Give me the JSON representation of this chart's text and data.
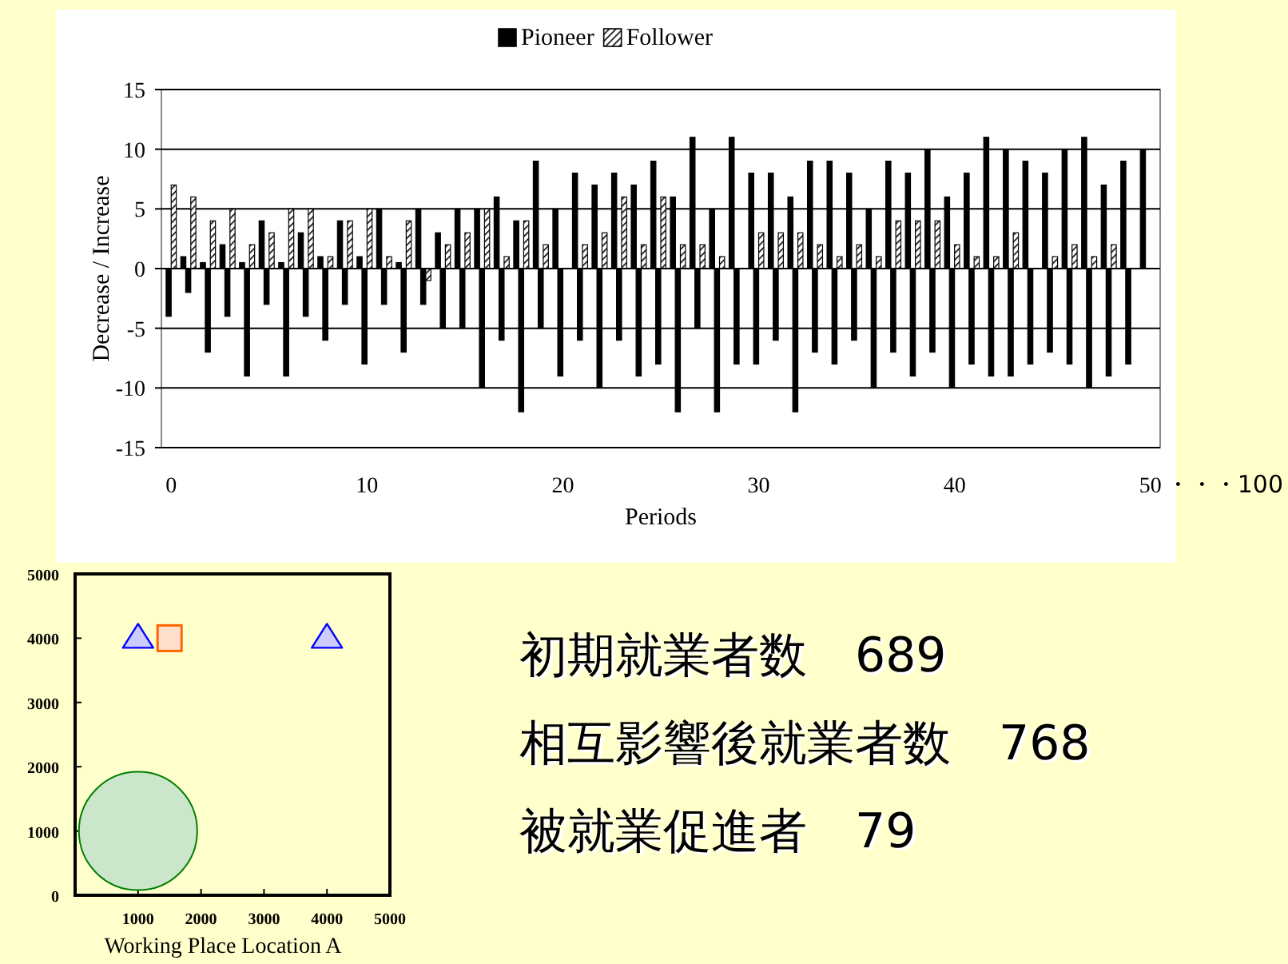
{
  "chart_data": [
    {
      "type": "bar",
      "xlabel": "Periods",
      "ylabel": "Decrease / Increase",
      "legend": "top",
      "grid": "y",
      "xlim": [
        -0.5,
        50.5
      ],
      "xticks": [
        0,
        10,
        20,
        30,
        40,
        50
      ],
      "ylim": [
        -15,
        15
      ],
      "yticks": [
        -15,
        -10,
        -5,
        0,
        5,
        10,
        15
      ],
      "annotations": [
        "・・・100"
      ],
      "series": [
        {
          "name": "Pioneer",
          "color": "#000000",
          "x": [
            0,
            0.75,
            1,
            1.75,
            2,
            2.75,
            3,
            3.75,
            4,
            4.75,
            5,
            5.75,
            6,
            6.75,
            7,
            7.75,
            8,
            8.75,
            9,
            9.75,
            10,
            10.75,
            11,
            11.75,
            12,
            12.75,
            13,
            13.75,
            14,
            14.75,
            15,
            15.75,
            16,
            16.75,
            17,
            17.75,
            18,
            18.75,
            19,
            19.75,
            20,
            20.75,
            21,
            21.75,
            22,
            22.75,
            23,
            23.75,
            24,
            24.75,
            25,
            25.75,
            26,
            26.75,
            27,
            27.75,
            28,
            28.75,
            29,
            29.75,
            30,
            30.75,
            31,
            31.75,
            32,
            32.75,
            33,
            33.75,
            34,
            34.75,
            35,
            35.75,
            36,
            36.75,
            37,
            37.75,
            38,
            38.75,
            39,
            39.75,
            40,
            40.75,
            41,
            41.75,
            42,
            42.75,
            43,
            43.75,
            44,
            44.75,
            45,
            45.75,
            46,
            46.75,
            47,
            47.75,
            48,
            48.75,
            49,
            49.75
          ],
          "values": [
            -4,
            1,
            -2,
            0.5,
            -7,
            2,
            -4,
            0.5,
            -9,
            4,
            -3,
            0.5,
            -9,
            3,
            -4,
            1,
            -6,
            4,
            -3,
            1,
            -8,
            5,
            -3,
            0.5,
            -7,
            5,
            -3,
            3,
            -5,
            5,
            -5,
            5,
            -10,
            6,
            -6,
            4,
            -12,
            9,
            -5,
            5,
            -9,
            8,
            -6,
            7,
            -10,
            8,
            -6,
            7,
            -9,
            9,
            -8,
            6,
            -12,
            11,
            -5,
            5,
            -12,
            11,
            -8,
            8,
            -8,
            8,
            -6,
            6,
            -12,
            9,
            -7,
            9,
            -8,
            8,
            -6,
            5,
            -10,
            9,
            -7,
            8,
            -9,
            10,
            -7,
            6,
            -10,
            8,
            -8,
            11,
            -9,
            10,
            -9,
            9,
            -8,
            8,
            -7,
            10,
            -8,
            11,
            -10,
            7,
            -9,
            9,
            -8,
            10
          ]
        },
        {
          "name": "Follower",
          "color": "#000000",
          "x": [
            0,
            1,
            2,
            3,
            4,
            5,
            6,
            7,
            8,
            9,
            10,
            11,
            12,
            13,
            14,
            15,
            16,
            17,
            18,
            19,
            21,
            22,
            23,
            24,
            25,
            26,
            27,
            28,
            30,
            31,
            32,
            33,
            34,
            35,
            36,
            37,
            38,
            39,
            40,
            41,
            42,
            43,
            45,
            46,
            47,
            48
          ],
          "values": [
            7,
            6,
            4,
            5,
            2,
            3,
            5,
            5,
            1,
            4,
            5,
            1,
            4,
            -1,
            2,
            3,
            5,
            1,
            4,
            2,
            2,
            3,
            6,
            2,
            6,
            2,
            2,
            1,
            3,
            3,
            3,
            2,
            1,
            2,
            1,
            4,
            4,
            4,
            2,
            1,
            1,
            3,
            1,
            2,
            1,
            2
          ]
        }
      ]
    },
    {
      "type": "scatter",
      "xlabel": "Working Place Location A",
      "xlim": [
        0,
        5000
      ],
      "xticks": [
        1000,
        2000,
        3000,
        4000,
        5000
      ],
      "ylim": [
        0,
        5000
      ],
      "yticks": [
        0,
        1000,
        2000,
        3000,
        4000,
        5000
      ],
      "grid": false,
      "series": [
        {
          "type": "scatter",
          "marker": "triangle",
          "color": "#0000ff",
          "x": [
            1000,
            4000
          ],
          "values": [
            4000,
            4000
          ]
        },
        {
          "type": "scatter",
          "marker": "square",
          "color": "#ff6600",
          "x": [
            1500
          ],
          "values": [
            4000
          ]
        },
        {
          "type": "bubble",
          "color": "#008000",
          "x": [
            1000
          ],
          "values": [
            1000
          ],
          "sizes": [
            1
          ]
        }
      ]
    },
    {
      "type": "other",
      "annotations": [
        "初期就業者数　689",
        "相互影響後就業者数　768",
        "被就業促進者　79"
      ]
    }
  ]
}
